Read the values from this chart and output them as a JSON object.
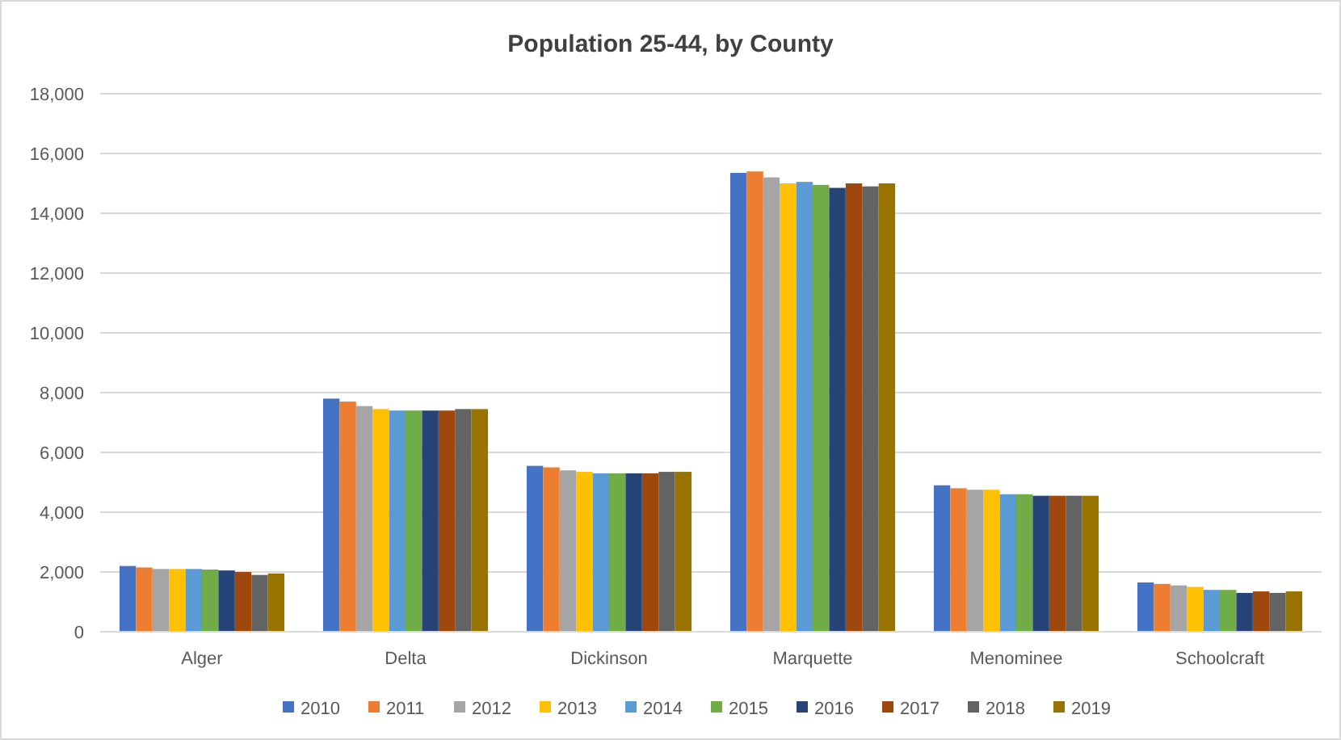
{
  "chart_data": {
    "type": "bar",
    "title": "Population 25-44, by County",
    "categories": [
      "Alger",
      "Delta",
      "Dickinson",
      "Marquette",
      "Menominee",
      "Schoolcraft"
    ],
    "series": [
      {
        "name": "2010",
        "color": "#4472c4",
        "values": [
          2200,
          7800,
          5550,
          15350,
          4900,
          1650
        ]
      },
      {
        "name": "2011",
        "color": "#ed7d31",
        "values": [
          2150,
          7700,
          5500,
          15400,
          4800,
          1600
        ]
      },
      {
        "name": "2012",
        "color": "#a5a5a5",
        "values": [
          2100,
          7550,
          5400,
          15200,
          4750,
          1550
        ]
      },
      {
        "name": "2013",
        "color": "#ffc000",
        "values": [
          2100,
          7450,
          5350,
          15000,
          4750,
          1500
        ]
      },
      {
        "name": "2014",
        "color": "#5b9bd5",
        "values": [
          2100,
          7400,
          5300,
          15050,
          4600,
          1400
        ]
      },
      {
        "name": "2015",
        "color": "#70ad47",
        "values": [
          2080,
          7400,
          5300,
          14950,
          4600,
          1400
        ]
      },
      {
        "name": "2016",
        "color": "#264478",
        "values": [
          2050,
          7400,
          5300,
          14850,
          4550,
          1300
        ]
      },
      {
        "name": "2017",
        "color": "#9e480e",
        "values": [
          2000,
          7400,
          5300,
          15000,
          4550,
          1350
        ]
      },
      {
        "name": "2018",
        "color": "#636363",
        "values": [
          1900,
          7450,
          5350,
          14900,
          4550,
          1300
        ]
      },
      {
        "name": "2019",
        "color": "#997300",
        "values": [
          1950,
          7450,
          5350,
          15000,
          4550,
          1350
        ]
      }
    ],
    "ylim": [
      0,
      18000
    ],
    "yticks": [
      {
        "value": 0,
        "label": "0"
      },
      {
        "value": 2000,
        "label": "2,000"
      },
      {
        "value": 4000,
        "label": "4,000"
      },
      {
        "value": 6000,
        "label": "6,000"
      },
      {
        "value": 8000,
        "label": "8,000"
      },
      {
        "value": 10000,
        "label": "10,000"
      },
      {
        "value": 12000,
        "label": "12,000"
      },
      {
        "value": 14000,
        "label": "14,000"
      },
      {
        "value": 16000,
        "label": "16,000"
      },
      {
        "value": 18000,
        "label": "18,000"
      }
    ],
    "grid": "y",
    "legend": "bottom"
  }
}
